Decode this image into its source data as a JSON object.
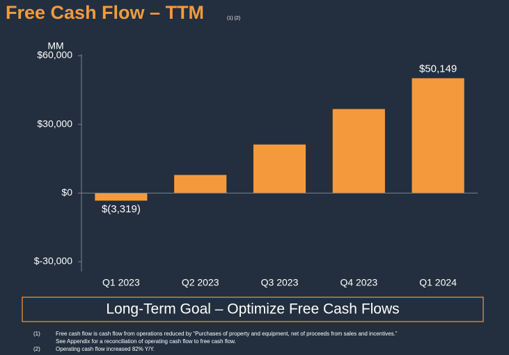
{
  "chart_data": {
    "type": "bar",
    "title": "Free Cash Flow – TTM",
    "title_notes": "(1) (2)",
    "y_unit": "MM",
    "categories": [
      "Q1 2023",
      "Q2 2023",
      "Q3 2023",
      "Q4 2023",
      "Q1 2024"
    ],
    "values": [
      -3319,
      7900,
      21200,
      36700,
      50149
    ],
    "value_labels": [
      "$(3,319)",
      null,
      null,
      null,
      "$50,149"
    ],
    "color": "#f49a3c",
    "ylim": [
      -30000,
      60000
    ],
    "yticks": [
      {
        "value": -30000,
        "label": "$-30,000"
      },
      {
        "value": 0,
        "label": "$0"
      },
      {
        "value": 30000,
        "label": "$30,000"
      },
      {
        "value": 60000,
        "label": "$60,000"
      }
    ],
    "grid": false
  },
  "goal_box": "Long-Term Goal – Optimize Free Cash Flows",
  "footnotes": [
    {
      "marker": "(1)",
      "lines": [
        "Free cash flow is cash flow from operations reduced by “Purchases of property and equipment, net of proceeds from sales and incentives.”",
        "See Appendix for a reconciliation of operating cash flow to free cash flow."
      ]
    },
    {
      "marker": "(2)",
      "lines": [
        "Operating cash flow increased 82% Y/Y."
      ]
    }
  ]
}
